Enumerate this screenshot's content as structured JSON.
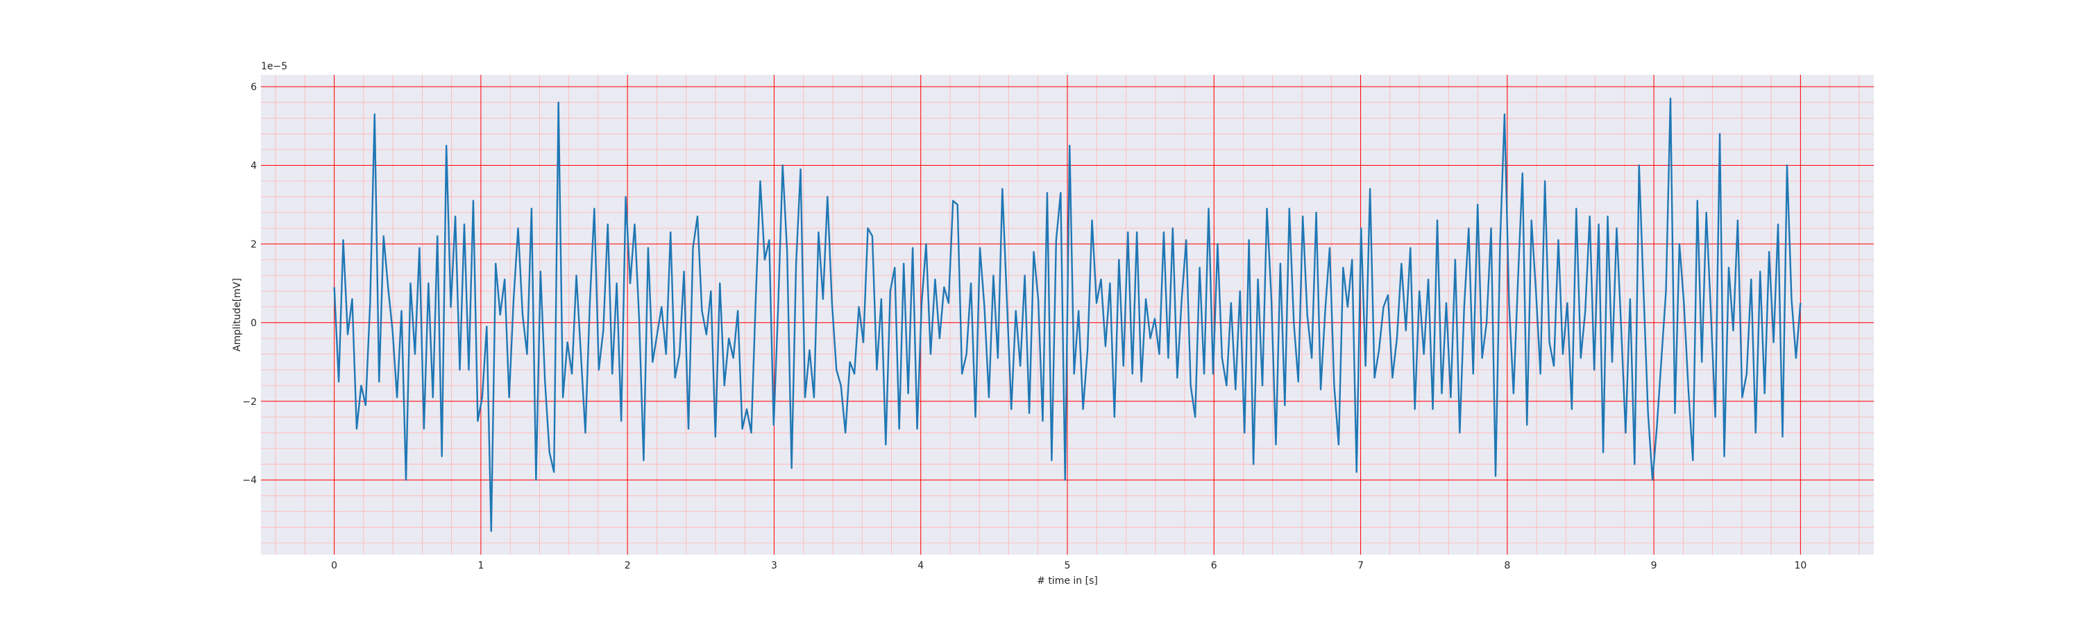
{
  "chart_data": {
    "type": "line",
    "title": "",
    "xlabel": "# time in [s]",
    "ylabel": "Amplitude[mV]",
    "y_offset_text": "1e−5",
    "xlim": [
      -0.5,
      10.5
    ],
    "ylim": [
      -5.9,
      6.3
    ],
    "x_ticks": [
      0,
      1,
      2,
      3,
      4,
      5,
      6,
      7,
      8,
      9,
      10
    ],
    "x_tick_labels": [
      "0",
      "1",
      "2",
      "3",
      "4",
      "5",
      "6",
      "7",
      "8",
      "9",
      "10"
    ],
    "y_ticks": [
      -4,
      -2,
      0,
      2,
      4,
      6
    ],
    "y_tick_labels": [
      "−4",
      "−2",
      "0",
      "2",
      "4",
      "6"
    ],
    "grid": true,
    "minor_grid": true,
    "colors": {
      "plot_background": "#eaeaf2",
      "major_grid": "#ff0000",
      "minor_grid": "#ffb3b3",
      "line": "#1f77b4",
      "text": "#262626"
    },
    "series": [
      {
        "name": "",
        "x_start": 0,
        "x_step": 0.01,
        "values": [
          0.9,
          -1.5,
          2.1,
          -0.3,
          0.6,
          -2.7,
          -1.6,
          -2.1,
          0.5,
          5.3,
          -1.5,
          2.2,
          0.9,
          -0.2,
          -1.9,
          0.3,
          -4.0,
          1.0,
          -0.8,
          1.9,
          -2.7,
          1.0,
          -1.9,
          2.2,
          -3.4,
          4.5,
          0.4,
          2.7,
          -1.2,
          2.5,
          -1.2,
          3.1,
          -2.5,
          -1.9,
          -0.1,
          -5.3,
          1.5,
          0.2,
          1.1,
          -1.9,
          0.6,
          2.4,
          0.2,
          -0.8,
          2.9,
          -4.0,
          1.3,
          -1.5,
          -3.3,
          -3.8,
          5.6,
          -1.9,
          -0.5,
          -1.3,
          1.2,
          -0.8,
          -2.8,
          0.5,
          2.9,
          -1.2,
          -0.2,
          2.5,
          -1.3,
          1.0,
          -2.5,
          3.2,
          1.0,
          2.5,
          0.1,
          -3.5,
          1.9,
          -1.0,
          -0.3,
          0.4,
          -0.8,
          2.3,
          -1.4,
          -0.8,
          1.3,
          -2.7,
          1.9,
          2.7,
          0.3,
          -0.3,
          0.8,
          -2.9,
          1.0,
          -1.6,
          -0.4,
          -0.9,
          0.3,
          -2.7,
          -2.2,
          -2.8,
          0.6,
          3.6,
          1.6,
          2.1,
          -2.6,
          0.4,
          4.0,
          1.8,
          -3.7,
          1.5,
          3.9,
          -1.9,
          -0.7,
          -1.9,
          2.3,
          0.6,
          3.2,
          0.5,
          -1.2,
          -1.6,
          -2.8,
          -1.0,
          -1.3,
          0.4,
          -0.5,
          2.4,
          2.2,
          -1.2,
          0.6,
          -3.1,
          0.8,
          1.4,
          -2.7,
          1.5,
          -1.8,
          1.9,
          -2.7,
          0.5,
          2.0,
          -0.8,
          1.1,
          -0.4,
          0.9,
          0.5,
          3.1,
          3.0,
          -1.3,
          -0.8,
          1.0,
          -2.4,
          1.9,
          0.4,
          -1.9,
          1.2,
          -0.9,
          3.4,
          0.6,
          -2.2,
          0.3,
          -1.1,
          1.2,
          -2.3,
          1.8,
          0.6,
          -2.5,
          3.3,
          -3.5,
          2.1,
          3.3,
          -4.0,
          4.5,
          -1.3,
          0.3,
          -2.2,
          -0.7,
          2.6,
          0.5,
          1.1,
          -0.6,
          1.0,
          -2.4,
          1.6,
          -1.1,
          2.3,
          -1.3,
          2.3,
          -1.5,
          0.6,
          -0.4,
          0.1,
          -0.8,
          2.3,
          -0.9,
          2.4,
          -1.4,
          0.6,
          2.1,
          -1.6,
          -2.4,
          1.4,
          -1.3,
          2.9,
          -1.3,
          2.0,
          -0.9,
          -1.6,
          0.5,
          -1.7,
          0.8,
          -2.8,
          2.1,
          -3.6,
          1.1,
          -1.6,
          2.9,
          0.6,
          -3.1,
          1.5,
          -2.1,
          2.9,
          0.0,
          -1.5,
          2.7,
          0.2,
          -0.9,
          2.8,
          -1.7,
          0.3,
          1.9,
          -1.6,
          -3.1,
          1.4,
          0.4,
          1.6,
          -3.8,
          2.4,
          -1.1,
          3.4,
          -1.4,
          -0.7,
          0.4,
          0.7,
          -1.4,
          -0.4,
          1.5,
          -0.2,
          1.9,
          -2.2,
          0.8,
          -0.8,
          1.1,
          -2.2,
          2.6,
          -1.8,
          0.5,
          -1.9,
          1.6,
          -2.8,
          0.4,
          2.4,
          -1.3,
          3.0,
          -0.9,
          0.0,
          2.4,
          -3.9,
          2.0,
          5.3,
          0.5,
          -1.8,
          1.1,
          3.8,
          -2.6,
          2.6,
          0.8,
          -1.3,
          3.6,
          -0.5,
          -1.1,
          2.1,
          -0.8,
          0.5,
          -2.2,
          2.9,
          -0.9,
          0.3,
          2.7,
          -1.2,
          2.5,
          -3.3,
          2.7,
          -1.0,
          2.4,
          -0.1,
          -2.8,
          0.6,
          -3.6,
          4.0,
          0.8,
          -2.3,
          -4.0,
          -2.6,
          -0.9,
          0.8,
          5.7,
          -2.3,
          2.0,
          0.5,
          -1.7,
          -3.5,
          3.1,
          -1.0,
          2.8,
          0.3,
          -2.4,
          4.8,
          -3.4,
          1.4,
          -0.2,
          2.6,
          -1.9,
          -1.3,
          1.1,
          -2.8,
          1.3,
          -1.8,
          1.8,
          -0.5,
          2.5,
          -2.9,
          4.0,
          0.6,
          -0.9,
          0.5
        ]
      }
    ]
  }
}
